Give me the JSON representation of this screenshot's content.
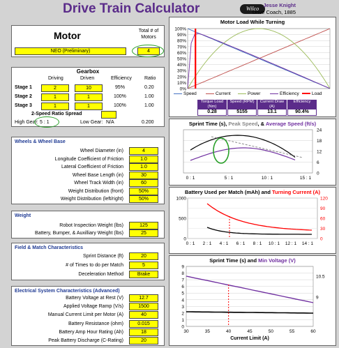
{
  "header": {
    "title": "Drive Train Calculator",
    "logo": "Wilco",
    "author": "Jesse Knight",
    "role": "Drive Coach, 1885"
  },
  "motor": {
    "label": "Motor",
    "count_header": "Total # of Motors",
    "type": "NEO (Preliminary)",
    "count": "4"
  },
  "gearbox": {
    "title": "Gearbox",
    "cols": [
      "Driving",
      "Driven",
      "Efficiency",
      "Ratio"
    ],
    "stages": [
      {
        "label": "Stage 1",
        "driving": "2",
        "driven": "10",
        "eff": "95%",
        "ratio": "0.20"
      },
      {
        "label": "Stage 2",
        "driving": "1",
        "driven": "1",
        "eff": "100%",
        "ratio": "1.00"
      },
      {
        "label": "Stage 3",
        "driving": "1",
        "driven": "1",
        "eff": "100%",
        "ratio": "1.00"
      }
    ],
    "spread_label": "2-Speed Ratio Spread",
    "high_label": "High Gear:",
    "high_val": "5 : 1",
    "low_label": "Low Gear:",
    "low_val": "N/A",
    "total": "0.200"
  },
  "wheels": {
    "title": "Wheels & Wheel Base",
    "rows": [
      {
        "label": "Wheel Diameter (in)",
        "val": "4"
      },
      {
        "label": "Longitude Coefficient of Friction",
        "val": "1.0"
      },
      {
        "label": "Lateral Coefficient of Friction",
        "val": "1.0"
      },
      {
        "label": "Wheel Base Length (in)",
        "val": "30"
      },
      {
        "label": "Wheel Track Width (in)",
        "val": "60"
      },
      {
        "label": "Weight Distribution (front)",
        "val": "50%"
      },
      {
        "label": "Weight Distribution (left/right)",
        "val": "50%"
      }
    ]
  },
  "weight": {
    "title": "Weight",
    "rows": [
      {
        "label": "Robot Inspection Weight (lbs)",
        "val": "125"
      },
      {
        "label": "Battery, Bumper, & Auxilliary Weight (lbs)",
        "val": "25"
      }
    ]
  },
  "field": {
    "title": "Field & Match Characteristics",
    "rows": [
      {
        "label": "Sprint Distance (ft)",
        "val": "20"
      },
      {
        "label": "# of Times to do per Match",
        "val": "5"
      },
      {
        "label": "Deceleration Method",
        "val": "Brake"
      }
    ]
  },
  "electrical": {
    "title": "Electrical System Characteristics (Advanced)",
    "rows": [
      {
        "label": "Battery Voltage at Rest (V)",
        "val": "12.7"
      },
      {
        "label": "Applied Voltage Ramp (V/s)",
        "val": "1500"
      },
      {
        "label": "Manual Current Limit per Motor (A)",
        "val": "40"
      },
      {
        "label": "Battery Resistance (ohm)",
        "val": "0.015"
      },
      {
        "label": "Battery Amp Hour Rating (Ah)",
        "val": "18"
      },
      {
        "label": "Peak Battery Discharge (C-Rating)",
        "val": "20"
      }
    ]
  },
  "motor_load": {
    "title": "Motor Load While Turning",
    "yticks": [
      "100%",
      "90%",
      "80%",
      "70%",
      "60%",
      "50%",
      "40%",
      "30%",
      "20%",
      "10%",
      "0%"
    ],
    "legend": [
      {
        "name": "Speed",
        "color": "#4472c4"
      },
      {
        "name": "Current",
        "color": "#c0504d"
      },
      {
        "name": "Power",
        "color": "#9bbb59"
      },
      {
        "name": "Efficiency",
        "color": "#7030a0"
      },
      {
        "name": "Load",
        "color": "#ff0000"
      }
    ],
    "table_headers": [
      "Torque Load (Nm)",
      "Speed (RPM)",
      "Current Draw (A)",
      "Efficiency"
    ],
    "table_values": [
      "0.28",
      "5155",
      "13.1",
      "90.4%"
    ]
  },
  "sprint_chart": {
    "title_parts": [
      "Sprint Time (s), ",
      "Peak Speed",
      ", & ",
      "Average Speed (ft/s)"
    ],
    "title_colors": [
      "#000000",
      "#888888",
      "#000000",
      "#7030a0"
    ],
    "left_ticks": [
      "",
      "",
      "",
      ""
    ],
    "right_ticks": [
      "24",
      "18",
      "12",
      "6",
      "0"
    ],
    "xticks": [
      "0 : 1",
      "5 : 1",
      "10 : 1",
      "15 : 1"
    ]
  },
  "battery_chart": {
    "title_parts": [
      "Battery Used per Match (mAh) and ",
      "Turning Current (A)"
    ],
    "title_colors": [
      "#000000",
      "#ff0000"
    ],
    "left_ticks": [
      "1000",
      "500",
      "0"
    ],
    "right_ticks": [
      "120",
      "90",
      "60",
      "30",
      "0"
    ],
    "xticks": [
      "0 : 1",
      "2 : 1",
      "4 : 1",
      "6 : 1",
      "8 : 1",
      "10 : 1",
      "12 : 1",
      "14 : 1"
    ]
  },
  "current_chart": {
    "title_parts": [
      "Sprint Time (s) and ",
      "Min Voltage (V)"
    ],
    "title_colors": [
      "#000000",
      "#7030a0"
    ],
    "left_ticks": [
      "9",
      "8",
      "7",
      "6",
      "5",
      "4",
      "3",
      "2",
      "1",
      "0"
    ],
    "right_ticks": [
      "10.5",
      "9"
    ],
    "xticks": [
      "30",
      "35",
      "40",
      "45",
      "50",
      "55",
      "60"
    ],
    "xlabel": "Current Limit (A)"
  },
  "colors": {
    "accent": "#5b2c8a",
    "input": "#ffff00",
    "section": "#1f3a93",
    "highlight": "#2aa02a"
  }
}
